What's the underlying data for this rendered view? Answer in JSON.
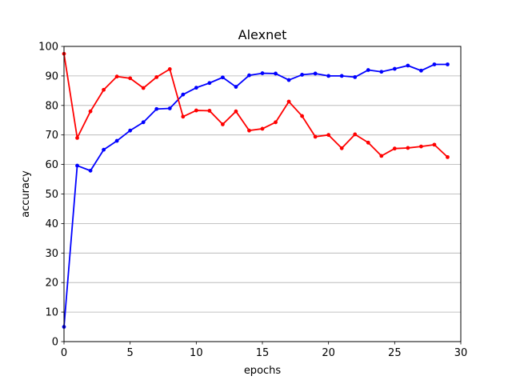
{
  "chart_data": {
    "type": "line",
    "title": "Alexnet",
    "xlabel": "epochs",
    "ylabel": "accuracy",
    "xlim": [
      0,
      30
    ],
    "ylim": [
      0,
      100
    ],
    "xticks": [
      0,
      5,
      10,
      15,
      20,
      25,
      30
    ],
    "yticks": [
      0,
      10,
      20,
      30,
      40,
      50,
      60,
      70,
      80,
      90,
      100
    ],
    "grid": "horizontal",
    "x": [
      0,
      1,
      2,
      3,
      4,
      5,
      6,
      7,
      8,
      9,
      10,
      11,
      12,
      13,
      14,
      15,
      16,
      17,
      18,
      19,
      20,
      21,
      22,
      23,
      24,
      25,
      26,
      27,
      28,
      29
    ],
    "series": [
      {
        "color": "#0000ff",
        "values": [
          5.0,
          59.6,
          57.9,
          65.0,
          68.0,
          71.5,
          74.3,
          78.8,
          79.0,
          83.7,
          86.0,
          87.6,
          89.5,
          86.3,
          90.2,
          90.9,
          90.8,
          88.6,
          90.4,
          90.8,
          90.0,
          90.0,
          89.6,
          92.0,
          91.4,
          92.4,
          93.5,
          91.8,
          93.9,
          93.9
        ]
      },
      {
        "color": "#ff0000",
        "values": [
          97.5,
          69.0,
          78.0,
          85.3,
          89.8,
          89.2,
          85.9,
          89.6,
          92.3,
          76.2,
          78.3,
          78.2,
          73.6,
          78.0,
          71.5,
          72.1,
          74.3,
          81.3,
          76.4,
          69.4,
          70.0,
          65.5,
          70.2,
          67.4,
          62.9,
          65.4,
          65.6,
          66.1,
          66.7,
          62.5
        ]
      }
    ]
  }
}
